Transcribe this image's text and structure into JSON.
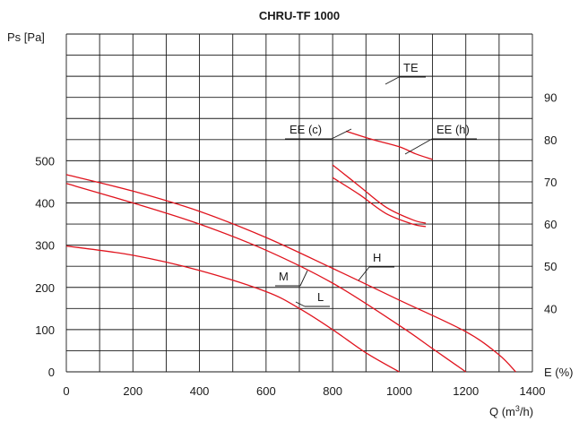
{
  "chart_data": {
    "type": "line",
    "title": "CHRU-TF 1000",
    "xlabel": "Q (m³/h)",
    "ylabel": "Ps [Pa]",
    "y2label": "E (%)",
    "xlim": [
      0,
      1400
    ],
    "ylim": [
      0,
      500
    ],
    "y2lim": [
      40,
      90
    ],
    "x_ticks": [
      "0",
      "200",
      "400",
      "600",
      "800",
      "1000",
      "1200",
      "1400"
    ],
    "y_ticks": [
      "0",
      "100",
      "200",
      "300",
      "400",
      "500"
    ],
    "y2_ticks": [
      "40",
      "50",
      "60",
      "70",
      "80",
      "90"
    ],
    "grid": true,
    "colors": {
      "curves": "#e0141e",
      "grid": "#1a1a1a"
    },
    "series": [
      {
        "name": "H",
        "axis": "left",
        "x": [
          0,
          200,
          400,
          600,
          800,
          1000,
          1200,
          1300,
          1350
        ],
        "y": [
          467,
          428,
          380,
          318,
          245,
          170,
          95,
          40,
          0
        ]
      },
      {
        "name": "M",
        "axis": "left",
        "x": [
          0,
          200,
          400,
          600,
          800,
          1000,
          1100,
          1200
        ],
        "y": [
          446,
          400,
          350,
          288,
          210,
          110,
          55,
          0
        ]
      },
      {
        "name": "L",
        "axis": "left",
        "x": [
          0,
          200,
          400,
          600,
          700,
          800,
          900,
          1000
        ],
        "y": [
          298,
          276,
          240,
          190,
          150,
          100,
          45,
          0
        ]
      },
      {
        "name": "TE",
        "axis": "right",
        "x": [
          840,
          920,
          1000,
          1050,
          1100
        ],
        "y": [
          82,
          80,
          78.3,
          76.6,
          75.3
        ]
      },
      {
        "name": "EE (c)",
        "axis": "right",
        "x": [
          800,
          880,
          960,
          1040,
          1080
        ],
        "y": [
          71,
          67,
          62.5,
          60,
          59.4
        ]
      },
      {
        "name": "EE (h)",
        "axis": "right",
        "x": [
          800,
          880,
          960,
          1040,
          1080
        ],
        "y": [
          74,
          69,
          64,
          61,
          60.2
        ]
      }
    ]
  }
}
